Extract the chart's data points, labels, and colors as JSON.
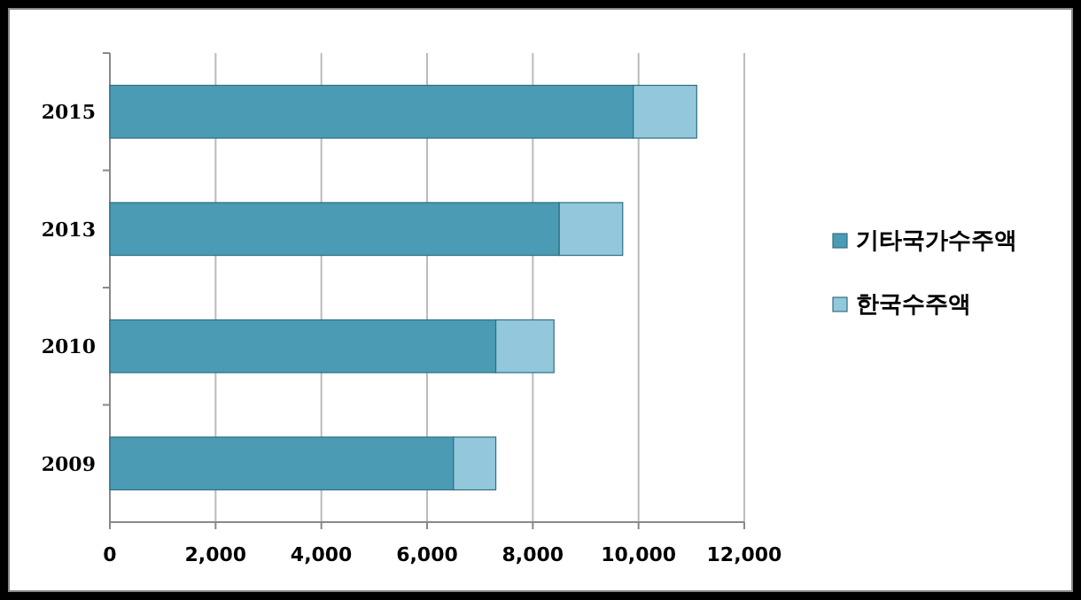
{
  "chart_data": {
    "type": "bar",
    "orientation": "horizontal",
    "stacked": true,
    "categories": [
      "2015",
      "2013",
      "2010",
      "2009"
    ],
    "series": [
      {
        "name": "기타국가수주액",
        "color": "#4a9bb3",
        "values": [
          9900,
          8500,
          7300,
          6500
        ]
      },
      {
        "name": "한국수주액",
        "color": "#93c8dc",
        "values": [
          1200,
          1200,
          1100,
          800
        ]
      }
    ],
    "xlim": [
      0,
      12000
    ],
    "xticks": [
      {
        "value": 0,
        "label": "0"
      },
      {
        "value": 2000,
        "label": "2,000"
      },
      {
        "value": 4000,
        "label": "4,000"
      },
      {
        "value": 6000,
        "label": "6,000"
      },
      {
        "value": 8000,
        "label": "8,000"
      },
      {
        "value": 10000,
        "label": "10,000"
      },
      {
        "value": 12000,
        "label": "12,000"
      }
    ],
    "grid": "x",
    "legend": "right"
  }
}
